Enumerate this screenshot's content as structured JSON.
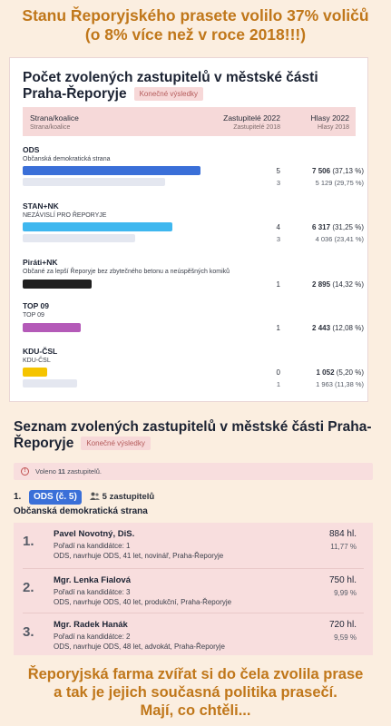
{
  "headline_top": [
    "Stanu Řeporyjského prasete volilo 37% voličů",
    "(o 8% více než v roce 2018!!!)"
  ],
  "headline_bottom": [
    "Řeporyjská farma zvířat si do čela zvolila prase",
    "a tak je jejich současná politika prasečí.",
    "Mají, co chtěli..."
  ],
  "results": {
    "title": "Počet zvolených zastupitelů v městské části Praha-Řeporyje",
    "badge": "Konečné výsledky",
    "columns": {
      "party": "Strana/koalice",
      "party_sub": "Strana/koalice",
      "seats": "Zastupitelé 2022",
      "seats_sub": "Zastupitelé 2018",
      "votes": "Hlasy 2022",
      "votes_sub": "Hlasy 2018"
    },
    "parties": [
      {
        "abbr": "ODS",
        "name": "Občanská demokratická strana",
        "color": "#3a6fd8",
        "share_2022": 37.13,
        "share_2018": 29.75,
        "seats_2022": "5",
        "votes_2022": "7 506",
        "pct_2022": "(37,13 %)",
        "seats_2018": "3",
        "votes_2018": "5 129",
        "pct_2018": "(29,75 %)"
      },
      {
        "abbr": "STAN+NK",
        "name": "NEZÁVISLÍ PRO ŘEPORYJE",
        "color": "#3fb7ef",
        "share_2022": 31.25,
        "share_2018": 23.41,
        "seats_2022": "4",
        "votes_2022": "6 317",
        "pct_2022": "(31,25 %)",
        "seats_2018": "3",
        "votes_2018": "4 036",
        "pct_2018": "(23,41 %)"
      },
      {
        "abbr": "Piráti+NK",
        "name": "Občané za lepší Řeporyje bez zbytečného betonu a neúspěšných komiků",
        "color": "#1f1f1f",
        "share_2022": 14.32,
        "seats_2022": "1",
        "votes_2022": "2 895",
        "pct_2022": "(14,32 %)"
      },
      {
        "abbr": "TOP 09",
        "name": "TOP 09",
        "color": "#b45ab8",
        "share_2022": 12.08,
        "seats_2022": "1",
        "votes_2022": "2 443",
        "pct_2022": "(12,08 %)"
      },
      {
        "abbr": "KDU-ČSL",
        "name": "KDU-ČSL",
        "color": "#f5c400",
        "share_2022": 5.2,
        "share_2018": 11.38,
        "seats_2022": "0",
        "votes_2022": "1 052",
        "pct_2022": "(5,20 %)",
        "seats_2018": "1",
        "votes_2018": "1 963",
        "pct_2018": "(11,38 %)"
      }
    ]
  },
  "elected": {
    "title": "Seznam zvolených zastupitelů v městské části Praha-Řeporyje",
    "badge": "Konečné výsledky",
    "info_prefix": "Voleno",
    "info_count": "11",
    "info_suffix": "zastupitelů.",
    "group_number": "1.",
    "group_badge": "ODS (č. 5)",
    "group_count": "5 zastupitelů",
    "group_name": "Občanská demokratická strana",
    "candidates": [
      {
        "rank": "1.",
        "name": "Pavel Novotný, DiS.",
        "order": "Pořadí na kandidátce: 1",
        "details": "ODS, navrhuje ODS, 41 let, novinář, Praha-Řeporyje",
        "votes": "884 hl.",
        "pct": "11,77 %"
      },
      {
        "rank": "2.",
        "name": "Mgr. Lenka Fialová",
        "order": "Pořadí na kandidátce: 3",
        "details": "ODS, navrhuje ODS, 40 let, produkční, Praha-Řeporyje",
        "votes": "750 hl.",
        "pct": "9,99 %"
      },
      {
        "rank": "3.",
        "name": "Mgr. Radek Hanák",
        "order": "Pořadí na kandidátce: 2",
        "details": "ODS, navrhuje ODS, 48 let, advokát, Praha-Řeporyje",
        "votes": "720 hl.",
        "pct": "9,59 %"
      }
    ]
  }
}
